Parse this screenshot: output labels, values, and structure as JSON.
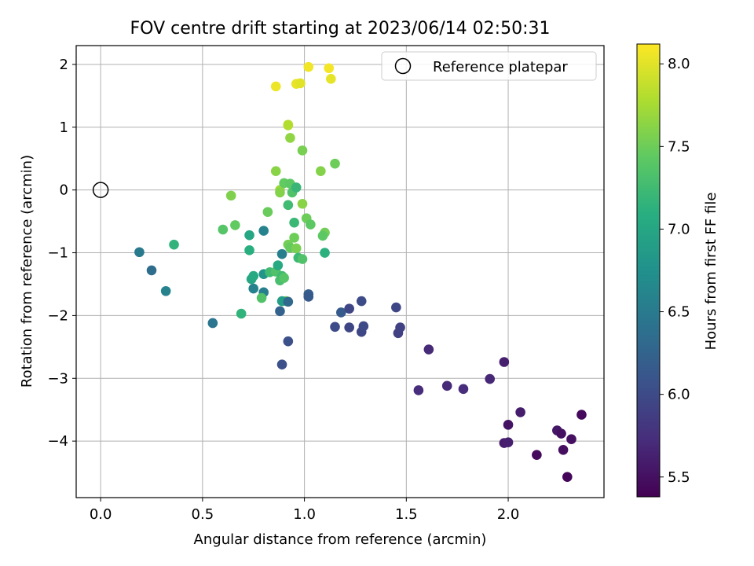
{
  "chart_data": {
    "type": "scatter",
    "title": "FOV centre drift starting at 2023/06/14 02:50:31",
    "xlabel": "Angular distance from reference (arcmin)",
    "ylabel": "Rotation from reference (arcmin)",
    "xlim": [
      -0.12,
      2.47
    ],
    "ylim": [
      -4.9,
      2.3
    ],
    "xticks": [
      0.0,
      0.5,
      1.0,
      1.5,
      2.0
    ],
    "xtick_labels": [
      "0.0",
      "0.5",
      "1.0",
      "1.5",
      "2.0"
    ],
    "yticks": [
      2,
      1,
      0,
      -1,
      -2,
      -3,
      -4
    ],
    "ytick_labels": [
      "2",
      "1",
      "0",
      "−1",
      "−2",
      "−3",
      "−4"
    ],
    "grid": true,
    "legend": {
      "position": "top-right",
      "entries": [
        "Reference platepar"
      ]
    },
    "reference_point": {
      "x": 0.0,
      "y": 0.0,
      "label": "Reference platepar"
    },
    "colorbar": {
      "label": "Hours from first FF file",
      "colormap": "viridis",
      "range": [
        5.38,
        8.12
      ],
      "ticks": [
        5.5,
        6.0,
        6.5,
        7.0,
        7.5,
        8.0
      ],
      "tick_labels": [
        "5.5",
        "6.0",
        "6.5",
        "7.0",
        "7.5",
        "8.0"
      ]
    },
    "points": [
      [
        0.86,
        1.65,
        8.05
      ],
      [
        1.02,
        1.96,
        8.07
      ],
      [
        1.12,
        1.94,
        8.08
      ],
      [
        1.13,
        1.77,
        8.02
      ],
      [
        0.96,
        1.69,
        8.03
      ],
      [
        0.98,
        1.7,
        8.0
      ],
      [
        0.92,
        1.04,
        7.85
      ],
      [
        0.92,
        1.03,
        7.8
      ],
      [
        0.93,
        0.83,
        7.65
      ],
      [
        0.99,
        0.63,
        7.55
      ],
      [
        1.15,
        0.42,
        7.5
      ],
      [
        1.08,
        0.3,
        7.6
      ],
      [
        0.86,
        0.3,
        7.62
      ],
      [
        0.64,
        -0.09,
        7.58
      ],
      [
        0.88,
        0.0,
        7.7
      ],
      [
        0.88,
        -0.04,
        7.6
      ],
      [
        0.9,
        0.11,
        7.45
      ],
      [
        0.93,
        0.1,
        7.42
      ],
      [
        0.94,
        -0.04,
        7.35
      ],
      [
        0.96,
        0.04,
        7.2
      ],
      [
        0.92,
        -0.24,
        7.25
      ],
      [
        0.99,
        -0.22,
        7.62
      ],
      [
        0.82,
        -0.35,
        7.48
      ],
      [
        1.01,
        -0.45,
        7.5
      ],
      [
        1.03,
        -0.55,
        7.42
      ],
      [
        0.95,
        -0.52,
        7.22
      ],
      [
        0.66,
        -0.56,
        7.45
      ],
      [
        0.6,
        -0.63,
        7.38
      ],
      [
        0.73,
        -0.72,
        7.0
      ],
      [
        0.8,
        -0.65,
        6.6
      ],
      [
        0.95,
        -0.76,
        7.5
      ],
      [
        0.92,
        -0.87,
        7.52
      ],
      [
        0.93,
        -0.92,
        7.46
      ],
      [
        0.96,
        -0.93,
        7.55
      ],
      [
        1.1,
        -0.68,
        7.52
      ],
      [
        1.09,
        -0.73,
        7.42
      ],
      [
        1.1,
        -1.0,
        7.12
      ],
      [
        0.97,
        -1.08,
        7.22
      ],
      [
        0.99,
        -1.1,
        7.35
      ],
      [
        0.89,
        -1.02,
        6.55
      ],
      [
        0.73,
        -0.96,
        7.1
      ],
      [
        0.36,
        -0.87,
        7.15
      ],
      [
        0.19,
        -0.99,
        6.5
      ],
      [
        0.25,
        -1.28,
        6.35
      ],
      [
        0.32,
        -1.61,
        6.6
      ],
      [
        0.55,
        -2.12,
        6.45
      ],
      [
        0.69,
        -1.97,
        7.15
      ],
      [
        0.75,
        -1.57,
        6.6
      ],
      [
        0.74,
        -1.42,
        7.0
      ],
      [
        0.75,
        -1.37,
        7.05
      ],
      [
        0.8,
        -1.34,
        6.8
      ],
      [
        0.83,
        -1.31,
        7.25
      ],
      [
        0.86,
        -1.3,
        7.35
      ],
      [
        0.87,
        -1.2,
        7.05
      ],
      [
        0.88,
        -1.44,
        7.3
      ],
      [
        0.89,
        -1.37,
        7.25
      ],
      [
        0.9,
        -1.4,
        7.38
      ],
      [
        0.8,
        -1.63,
        6.55
      ],
      [
        0.79,
        -1.72,
        7.35
      ],
      [
        0.91,
        -1.77,
        7.5
      ],
      [
        0.89,
        -1.77,
        6.9
      ],
      [
        0.92,
        -1.78,
        6.3
      ],
      [
        1.02,
        -1.66,
        6.2
      ],
      [
        1.02,
        -1.7,
        6.15
      ],
      [
        0.88,
        -1.93,
        6.25
      ],
      [
        0.92,
        -2.41,
        6.05
      ],
      [
        0.89,
        -2.78,
        6.05
      ],
      [
        1.18,
        -1.95,
        6.15
      ],
      [
        1.22,
        -1.89,
        5.95
      ],
      [
        1.28,
        -1.77,
        6.0
      ],
      [
        1.15,
        -2.18,
        6.0
      ],
      [
        1.22,
        -2.19,
        5.95
      ],
      [
        1.28,
        -2.26,
        5.95
      ],
      [
        1.29,
        -2.17,
        5.98
      ],
      [
        1.45,
        -1.87,
        5.95
      ],
      [
        1.46,
        -2.28,
        5.9
      ],
      [
        1.47,
        -2.19,
        5.92
      ],
      [
        1.61,
        -2.54,
        5.7
      ],
      [
        1.56,
        -3.19,
        5.72
      ],
      [
        1.7,
        -3.12,
        5.7
      ],
      [
        1.78,
        -3.17,
        5.72
      ],
      [
        1.91,
        -3.01,
        5.68
      ],
      [
        1.98,
        -2.74,
        5.62
      ],
      [
        2.06,
        -3.54,
        5.6
      ],
      [
        2.0,
        -3.74,
        5.52
      ],
      [
        1.98,
        -4.03,
        5.6
      ],
      [
        2.0,
        -4.02,
        5.62
      ],
      [
        2.14,
        -4.22,
        5.45
      ],
      [
        2.24,
        -3.83,
        5.55
      ],
      [
        2.26,
        -3.88,
        5.5
      ],
      [
        2.27,
        -4.14,
        5.48
      ],
      [
        2.31,
        -3.97,
        5.5
      ],
      [
        2.36,
        -3.58,
        5.45
      ],
      [
        2.29,
        -4.57,
        5.42
      ]
    ]
  }
}
